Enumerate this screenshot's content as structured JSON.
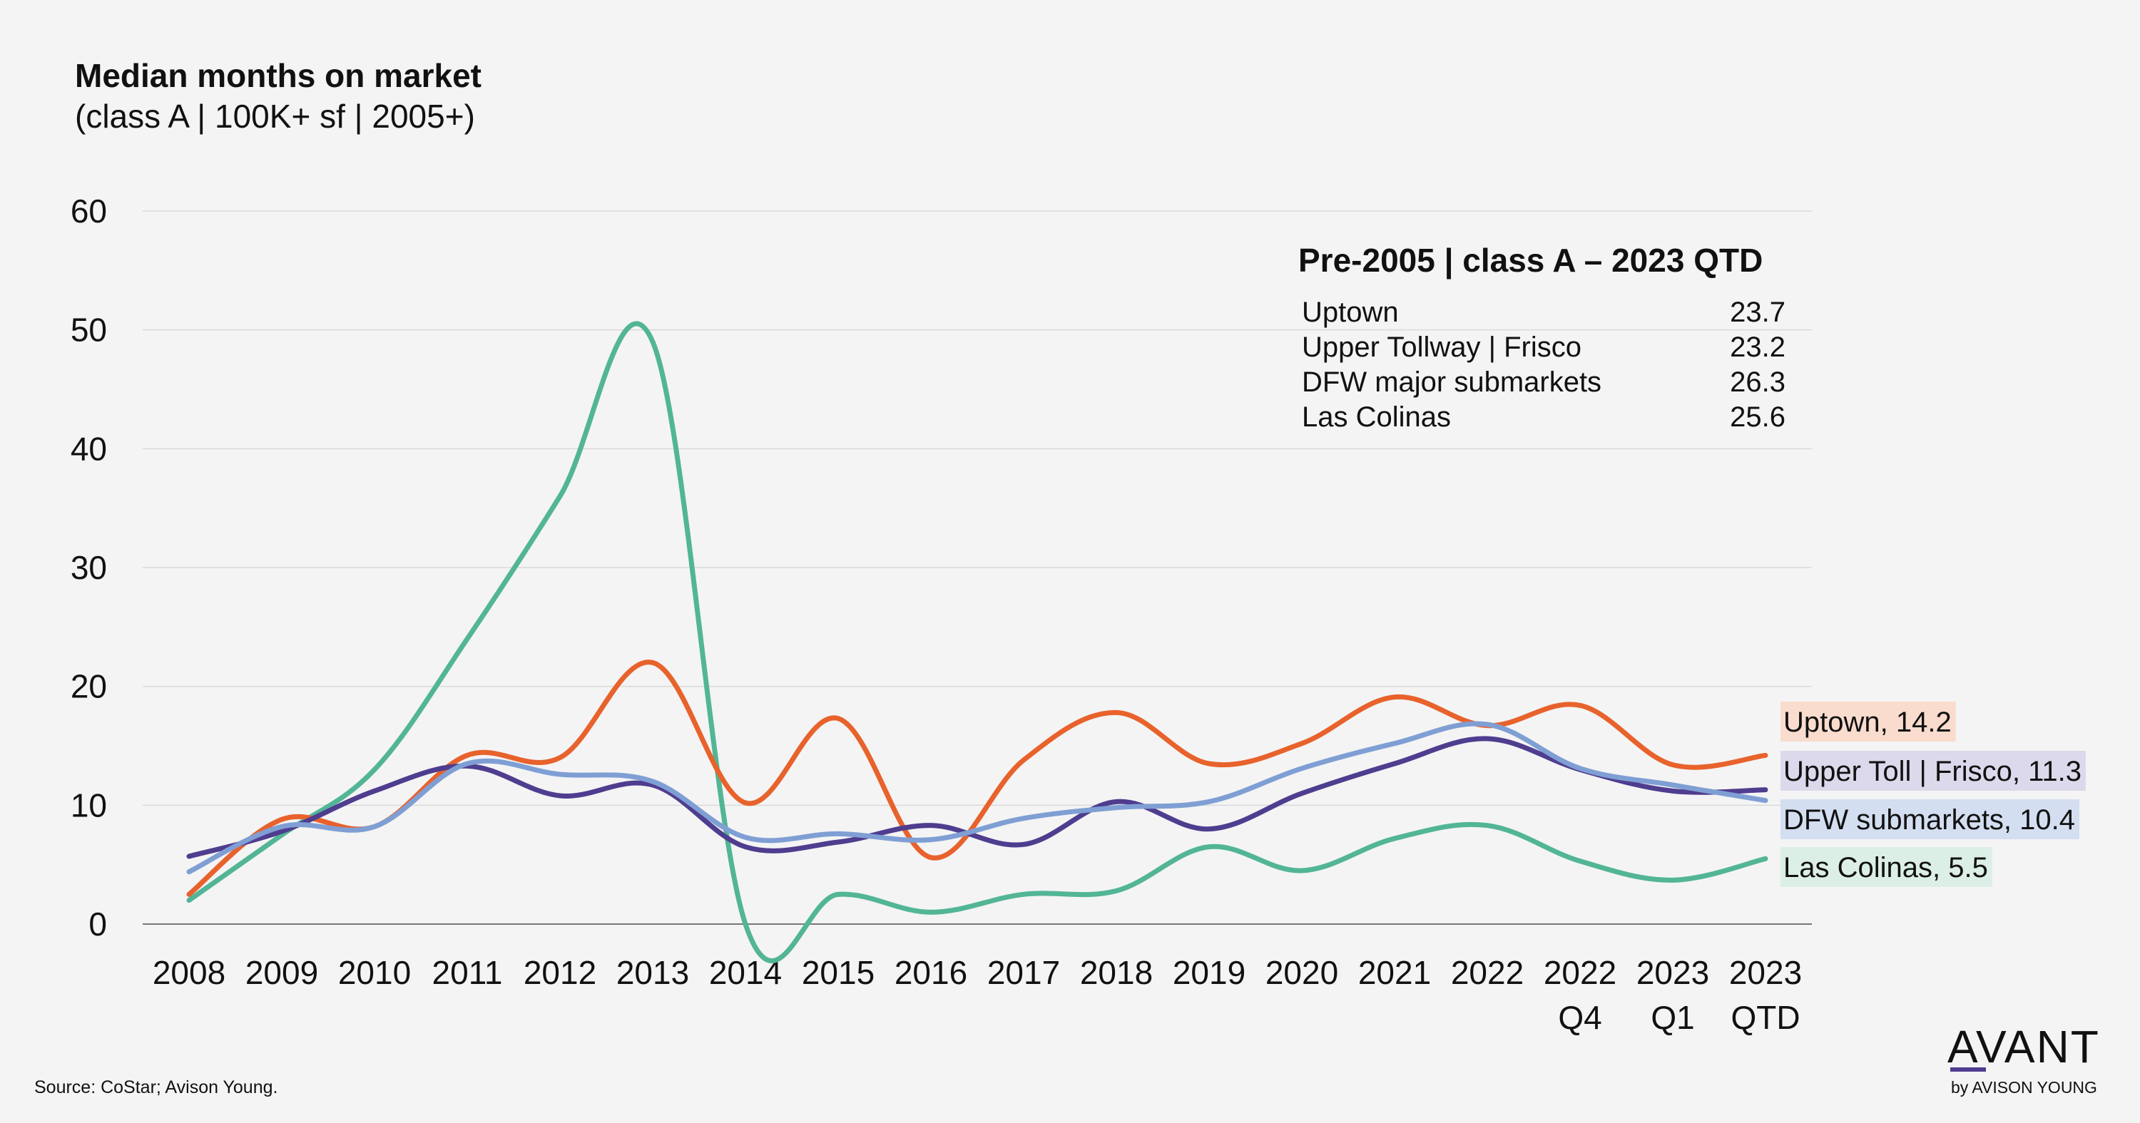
{
  "chart_data": {
    "type": "line",
    "title": "Median months on market",
    "subtitle": "(class A | 100K+ sf | 2005+)",
    "categories": [
      [
        "2008"
      ],
      [
        "2009"
      ],
      [
        "2010"
      ],
      [
        "2011"
      ],
      [
        "2012"
      ],
      [
        "2013"
      ],
      [
        "2014"
      ],
      [
        "2015"
      ],
      [
        "2016"
      ],
      [
        "2017"
      ],
      [
        "2018"
      ],
      [
        "2019"
      ],
      [
        "2020"
      ],
      [
        "2021"
      ],
      [
        "2022"
      ],
      [
        "2022",
        "Q4"
      ],
      [
        "2023",
        "Q1"
      ],
      [
        "2023",
        "QTD"
      ]
    ],
    "ylim": [
      0,
      60
    ],
    "yticks": [
      0,
      10,
      20,
      30,
      40,
      50,
      60
    ],
    "grid": true,
    "series": [
      {
        "name": "Las Colinas",
        "color": "#52b596",
        "label": "Las Colinas, 5.5",
        "label_bg": "#dcefe6",
        "values": [
          2.0,
          7.5,
          13.0,
          24.0,
          36.0,
          49.0,
          0.0,
          2.5,
          1.0,
          2.5,
          2.8,
          6.5,
          4.5,
          7.2,
          8.3,
          5.3,
          3.7,
          5.5
        ]
      },
      {
        "name": "Uptown",
        "color": "#e8622c",
        "label": "Uptown, 14.2",
        "label_bg": "#f9dccd",
        "values": [
          2.5,
          8.8,
          8.2,
          14.2,
          14.0,
          22.0,
          10.2,
          17.3,
          5.6,
          13.8,
          17.8,
          13.5,
          15.2,
          19.1,
          16.7,
          18.4,
          13.4,
          14.2
        ]
      },
      {
        "name": "Upper Toll | Frisco",
        "color": "#4f3d8f",
        "label": "Upper Toll | Frisco, 11.3",
        "label_bg": "#ddd9ec",
        "values": [
          5.7,
          7.8,
          11.2,
          13.3,
          10.8,
          11.7,
          6.5,
          6.9,
          8.3,
          6.7,
          10.3,
          8.0,
          11.0,
          13.5,
          15.6,
          13.0,
          11.2,
          11.3
        ]
      },
      {
        "name": "DFW submarkets",
        "color": "#7f9fd4",
        "label": "DFW submarkets, 10.4",
        "label_bg": "#d4def1",
        "values": [
          4.4,
          8.2,
          8.2,
          13.5,
          12.6,
          12.0,
          7.3,
          7.6,
          7.1,
          8.9,
          9.8,
          10.3,
          13.1,
          15.2,
          16.8,
          13.1,
          11.7,
          10.4
        ]
      }
    ]
  },
  "inset": {
    "title": "Pre-2005 | class A – 2023 QTD",
    "rows": [
      {
        "name": "Uptown",
        "value": "23.7"
      },
      {
        "name": "Upper Tollway | Frisco",
        "value": "23.2"
      },
      {
        "name": "DFW major submarkets",
        "value": "26.3"
      },
      {
        "name": "Las Colinas",
        "value": "25.6"
      }
    ]
  },
  "footer": {
    "source": "Source: CoStar; Avison Young.",
    "logo_main": "AVANT",
    "logo_sub": "by AVISON YOUNG",
    "logo_accent": "#4f3d8f"
  }
}
